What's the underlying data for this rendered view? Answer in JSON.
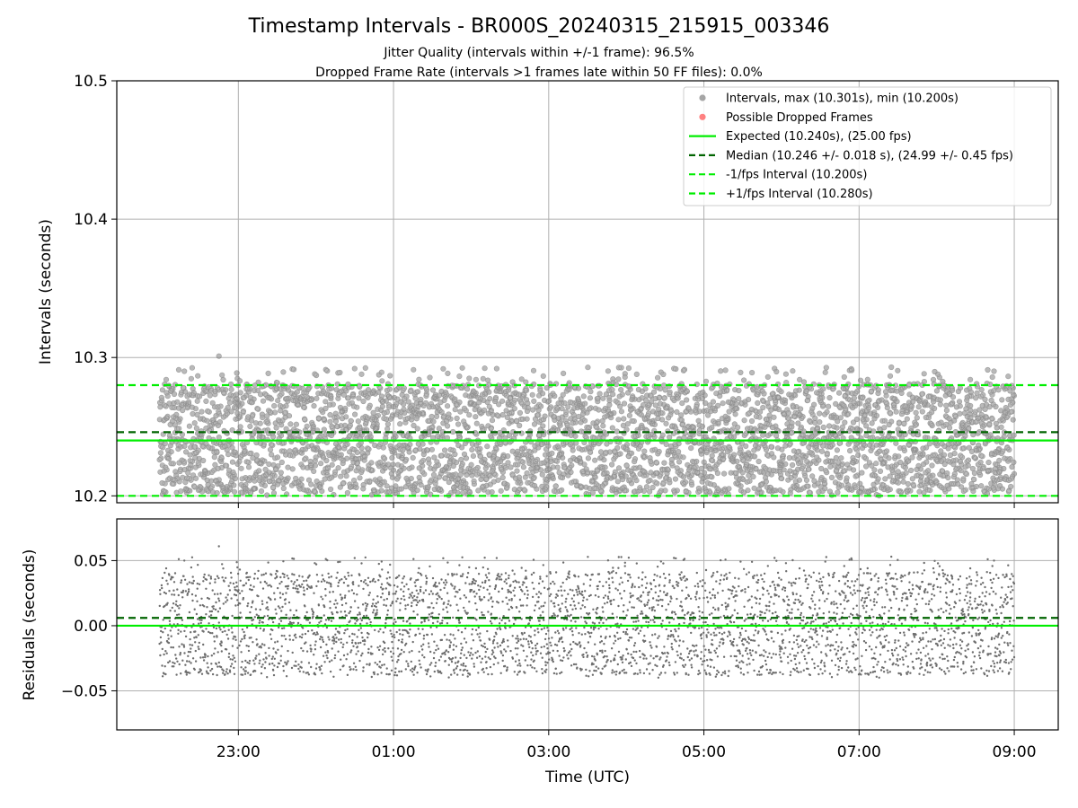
{
  "figure": {
    "title": "Timestamp Intervals - BR000S_20240315_215915_003346",
    "subtitle_1": "Jitter Quality (intervals within +/-1 frame): 96.5%",
    "subtitle_2": "Dropped Frame Rate (intervals >1 frames late within 50 FF files): 0.0%"
  },
  "colors": {
    "points": "#808080",
    "dropped": "#ff4b4b",
    "expected": "#00ee00",
    "median": "#006400",
    "interval_bounds": "#00ee00",
    "grid": "#b0b0b0"
  },
  "chart_data": [
    {
      "type": "scatter",
      "name": "intervals",
      "xlabel": "",
      "ylabel": "Intervals (seconds)",
      "ylim": [
        10.195,
        10.5
      ],
      "yticks": [
        10.2,
        10.3,
        10.4,
        10.5
      ],
      "ytick_labels": [
        "10.2",
        "10.3",
        "10.4",
        "10.5"
      ],
      "xlim_hours_utc": [
        "21:26",
        "09:34"
      ],
      "x_range": [
        "21:59",
        "09:00"
      ],
      "n_points_approx": 3870,
      "grid": true,
      "legend_position": "top-right",
      "legend": [
        {
          "label": "Intervals, max (10.301s), min (10.200s)",
          "kind": "marker",
          "color": "#808080"
        },
        {
          "label": "Possible Dropped Frames",
          "kind": "marker",
          "color": "#ff4b4b"
        },
        {
          "label": "Expected (10.240s), (25.00 fps)",
          "kind": "solid",
          "color": "#00ee00"
        },
        {
          "label": "Median (10.246 +/- 0.018 s), (24.99 +/- 0.45 fps)",
          "kind": "dashed",
          "color": "#006400"
        },
        {
          "label": "-1/fps Interval (10.200s)",
          "kind": "dashed",
          "color": "#00ee00"
        },
        {
          "label": "+1/fps Interval (10.280s)",
          "kind": "dashed",
          "color": "#00ee00"
        }
      ],
      "reference_lines": {
        "expected": 10.24,
        "median": 10.246,
        "minus_1_fps": 10.2,
        "plus_1_fps": 10.28
      },
      "stats": {
        "max": 10.301,
        "min": 10.2,
        "median": 10.246,
        "std": 0.018
      },
      "dropped_frames": []
    },
    {
      "type": "scatter",
      "name": "residuals",
      "xlabel": "Time (UTC)",
      "ylabel": "Residuals (seconds)",
      "ylim": [
        -0.08,
        0.082
      ],
      "yticks": [
        -0.05,
        0.0,
        0.05
      ],
      "ytick_labels": [
        "−0.05",
        "0.00",
        "0.05"
      ],
      "xticks": [
        "23:00",
        "01:00",
        "03:00",
        "05:00",
        "07:00",
        "09:00"
      ],
      "grid": true,
      "reference_lines": {
        "zero": 0.0,
        "median_offset": 0.006
      }
    }
  ]
}
